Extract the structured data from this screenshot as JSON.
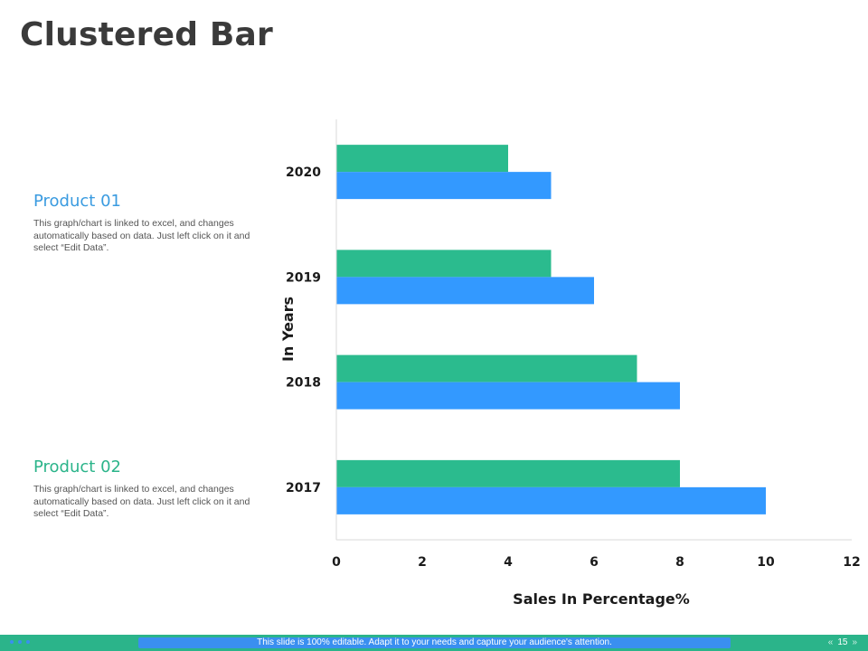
{
  "slide": {
    "title": "Clustered Bar"
  },
  "products": [
    {
      "name": "Product 01",
      "color": "#3a9be0",
      "description": "This graph/chart is linked to excel, and changes automatically based on data. Just left click on it and select “Edit Data”."
    },
    {
      "name": "Product 02",
      "color": "#2bb48a",
      "description": "This graph/chart is linked to excel, and changes automatically based on data. Just left click on it and select “Edit Data”."
    }
  ],
  "chart_data": {
    "type": "bar",
    "orientation": "horizontal",
    "categories": [
      "2017",
      "2018",
      "2019",
      "2020"
    ],
    "series": [
      {
        "name": "Product 01",
        "values": [
          10,
          8,
          6,
          5
        ],
        "color": "#3399ff"
      },
      {
        "name": "Product 02",
        "values": [
          8,
          7,
          5,
          4
        ],
        "color": "#2bbb8e"
      }
    ],
    "xlabel": "Sales In Percentage%",
    "ylabel": "In Years",
    "xlim": [
      0,
      12
    ],
    "xticks": [
      "0",
      "2",
      "4",
      "6",
      "8",
      "10",
      "12"
    ],
    "grid": false
  },
  "footer": {
    "banner": "This slide is 100% editable. Adapt it to your needs and capture your audience's attention.",
    "page_number": "15",
    "prev_glyph": "«",
    "next_glyph": "»",
    "accent": "#2bb48a"
  }
}
